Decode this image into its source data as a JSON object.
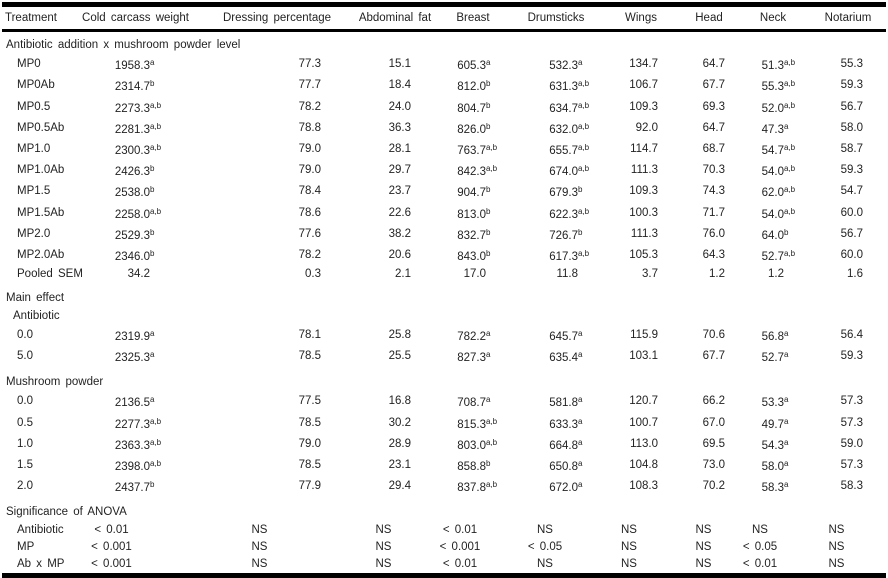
{
  "colors": {
    "text": "#232323",
    "rule": "#000000",
    "background": "#ffffff"
  },
  "table": {
    "columns": [
      "Treatment",
      "Cold carcass weight",
      "Dressing percentage",
      "Abdominal fat",
      "Breast",
      "Drumsticks",
      "Wings",
      "Head",
      "Neck",
      "Notarium"
    ],
    "rows": [
      {
        "type": "section",
        "label": "Antibiotic addition x mushroom powder level"
      },
      {
        "type": "data",
        "label": "MP0",
        "values": [
          {
            "v": "1958.3",
            "s": "a"
          },
          {
            "v": "77.3",
            "s": ""
          },
          {
            "v": "15.1",
            "s": ""
          },
          {
            "v": "605.3",
            "s": "a"
          },
          {
            "v": "532.3",
            "s": "a"
          },
          {
            "v": "134.7",
            "s": ""
          },
          {
            "v": "64.7",
            "s": ""
          },
          {
            "v": "51.3",
            "s": "a,b"
          },
          {
            "v": "55.3",
            "s": ""
          }
        ]
      },
      {
        "type": "data",
        "label": "MP0Ab",
        "values": [
          {
            "v": "2314.7",
            "s": "b"
          },
          {
            "v": "77.7",
            "s": ""
          },
          {
            "v": "18.4",
            "s": ""
          },
          {
            "v": "812.0",
            "s": "b"
          },
          {
            "v": "631.3",
            "s": "a,b"
          },
          {
            "v": "106.7",
            "s": ""
          },
          {
            "v": "67.7",
            "s": ""
          },
          {
            "v": "55.3",
            "s": "a,b"
          },
          {
            "v": "59.3",
            "s": ""
          }
        ]
      },
      {
        "type": "data",
        "label": "MP0.5",
        "values": [
          {
            "v": "2273.3",
            "s": "a,b"
          },
          {
            "v": "78.2",
            "s": ""
          },
          {
            "v": "24.0",
            "s": ""
          },
          {
            "v": "804.7",
            "s": "b"
          },
          {
            "v": "634.7",
            "s": "a,b"
          },
          {
            "v": "109.3",
            "s": ""
          },
          {
            "v": "69.3",
            "s": ""
          },
          {
            "v": "52.0",
            "s": "a,b"
          },
          {
            "v": "56.7",
            "s": ""
          }
        ]
      },
      {
        "type": "data",
        "label": "MP0.5Ab",
        "values": [
          {
            "v": "2281.3",
            "s": "a,b"
          },
          {
            "v": "78.8",
            "s": ""
          },
          {
            "v": "36.3",
            "s": ""
          },
          {
            "v": "826.0",
            "s": "b"
          },
          {
            "v": "632.0",
            "s": "a,b"
          },
          {
            "v": "92.0",
            "s": ""
          },
          {
            "v": "64.7",
            "s": ""
          },
          {
            "v": "47.3",
            "s": "a"
          },
          {
            "v": "58.0",
            "s": ""
          }
        ]
      },
      {
        "type": "data",
        "label": "MP1.0",
        "values": [
          {
            "v": "2300.3",
            "s": "a,b"
          },
          {
            "v": "79.0",
            "s": ""
          },
          {
            "v": "28.1",
            "s": ""
          },
          {
            "v": "763.7",
            "s": "a,b"
          },
          {
            "v": "655.7",
            "s": "a,b"
          },
          {
            "v": "114.7",
            "s": ""
          },
          {
            "v": "68.7",
            "s": ""
          },
          {
            "v": "54.7",
            "s": "a,b"
          },
          {
            "v": "58.7",
            "s": ""
          }
        ]
      },
      {
        "type": "data",
        "label": "MP1.0Ab",
        "values": [
          {
            "v": "2426.3",
            "s": "b"
          },
          {
            "v": "79.0",
            "s": ""
          },
          {
            "v": "29.7",
            "s": ""
          },
          {
            "v": "842.3",
            "s": "a,b"
          },
          {
            "v": "674.0",
            "s": "a,b"
          },
          {
            "v": "111.3",
            "s": ""
          },
          {
            "v": "70.3",
            "s": ""
          },
          {
            "v": "54.0",
            "s": "a,b"
          },
          {
            "v": "59.3",
            "s": ""
          }
        ]
      },
      {
        "type": "data",
        "label": "MP1.5",
        "values": [
          {
            "v": "2538.0",
            "s": "b"
          },
          {
            "v": "78.4",
            "s": ""
          },
          {
            "v": "23.7",
            "s": ""
          },
          {
            "v": "904.7",
            "s": "b"
          },
          {
            "v": "679.3",
            "s": "b"
          },
          {
            "v": "109.3",
            "s": ""
          },
          {
            "v": "74.3",
            "s": ""
          },
          {
            "v": "62.0",
            "s": "a,b"
          },
          {
            "v": "54.7",
            "s": ""
          }
        ]
      },
      {
        "type": "data",
        "label": "MP1.5Ab",
        "values": [
          {
            "v": "2258.0",
            "s": "a,b"
          },
          {
            "v": "78.6",
            "s": ""
          },
          {
            "v": "22.6",
            "s": ""
          },
          {
            "v": "813.0",
            "s": "b"
          },
          {
            "v": "622.3",
            "s": "a,b"
          },
          {
            "v": "100.3",
            "s": ""
          },
          {
            "v": "71.7",
            "s": ""
          },
          {
            "v": "54.0",
            "s": "a,b"
          },
          {
            "v": "60.0",
            "s": ""
          }
        ]
      },
      {
        "type": "data",
        "label": "MP2.0",
        "values": [
          {
            "v": "2529.3",
            "s": "b"
          },
          {
            "v": "77.6",
            "s": ""
          },
          {
            "v": "38.2",
            "s": ""
          },
          {
            "v": "832.7",
            "s": "b"
          },
          {
            "v": "726.7",
            "s": "b"
          },
          {
            "v": "111.3",
            "s": ""
          },
          {
            "v": "76.0",
            "s": ""
          },
          {
            "v": "64.0",
            "s": "b"
          },
          {
            "v": "56.7",
            "s": ""
          }
        ]
      },
      {
        "type": "data",
        "label": "MP2.0Ab",
        "values": [
          {
            "v": "2346.0",
            "s": "b"
          },
          {
            "v": "78.2",
            "s": ""
          },
          {
            "v": "20.6",
            "s": ""
          },
          {
            "v": "843.0",
            "s": "b"
          },
          {
            "v": "617.3",
            "s": "a,b"
          },
          {
            "v": "105.3",
            "s": ""
          },
          {
            "v": "64.3",
            "s": ""
          },
          {
            "v": "52.7",
            "s": "a,b"
          },
          {
            "v": "60.0",
            "s": ""
          }
        ]
      },
      {
        "type": "data",
        "label": "Pooled SEM",
        "values": [
          {
            "v": "34.2",
            "s": ""
          },
          {
            "v": "0.3",
            "s": ""
          },
          {
            "v": "2.1",
            "s": ""
          },
          {
            "v": "17.0",
            "s": ""
          },
          {
            "v": "11.8",
            "s": ""
          },
          {
            "v": "3.7",
            "s": ""
          },
          {
            "v": "1.2",
            "s": ""
          },
          {
            "v": "1.2",
            "s": ""
          },
          {
            "v": "1.6",
            "s": ""
          }
        ]
      },
      {
        "type": "section",
        "label": "Main effect"
      },
      {
        "type": "subsection",
        "label": "Antibiotic"
      },
      {
        "type": "data",
        "label": "0.0",
        "values": [
          {
            "v": "2319.9",
            "s": "a"
          },
          {
            "v": "78.1",
            "s": ""
          },
          {
            "v": "25.8",
            "s": ""
          },
          {
            "v": "782.2",
            "s": "a"
          },
          {
            "v": "645.7",
            "s": "a"
          },
          {
            "v": "115.9",
            "s": ""
          },
          {
            "v": "70.6",
            "s": ""
          },
          {
            "v": "56.8",
            "s": "a"
          },
          {
            "v": "56.4",
            "s": ""
          }
        ]
      },
      {
        "type": "data",
        "label": "5.0",
        "values": [
          {
            "v": "2325.3",
            "s": "a"
          },
          {
            "v": "78.5",
            "s": ""
          },
          {
            "v": "25.5",
            "s": ""
          },
          {
            "v": "827.3",
            "s": "a"
          },
          {
            "v": "635.4",
            "s": "a"
          },
          {
            "v": "103.1",
            "s": ""
          },
          {
            "v": "67.7",
            "s": ""
          },
          {
            "v": "52.7",
            "s": "a"
          },
          {
            "v": "59.3",
            "s": ""
          }
        ]
      },
      {
        "type": "section",
        "label": "Mushroom powder"
      },
      {
        "type": "data",
        "label": "0.0",
        "values": [
          {
            "v": "2136.5",
            "s": "a"
          },
          {
            "v": "77.5",
            "s": ""
          },
          {
            "v": "16.8",
            "s": ""
          },
          {
            "v": "708.7",
            "s": "a"
          },
          {
            "v": "581.8",
            "s": "a"
          },
          {
            "v": "120.7",
            "s": ""
          },
          {
            "v": "66.2",
            "s": ""
          },
          {
            "v": "53.3",
            "s": "a"
          },
          {
            "v": "57.3",
            "s": ""
          }
        ]
      },
      {
        "type": "data",
        "label": "0.5",
        "values": [
          {
            "v": "2277.3",
            "s": "a,b"
          },
          {
            "v": "78.5",
            "s": ""
          },
          {
            "v": "30.2",
            "s": ""
          },
          {
            "v": "815.3",
            "s": "a,b"
          },
          {
            "v": "633.3",
            "s": "a"
          },
          {
            "v": "100.7",
            "s": ""
          },
          {
            "v": "67.0",
            "s": ""
          },
          {
            "v": "49.7",
            "s": "a"
          },
          {
            "v": "57.3",
            "s": ""
          }
        ]
      },
      {
        "type": "data",
        "label": "1.0",
        "values": [
          {
            "v": "2363.3",
            "s": "a,b"
          },
          {
            "v": "79.0",
            "s": ""
          },
          {
            "v": "28.9",
            "s": ""
          },
          {
            "v": "803.0",
            "s": "a,b"
          },
          {
            "v": "664.8",
            "s": "a"
          },
          {
            "v": "113.0",
            "s": ""
          },
          {
            "v": "69.5",
            "s": ""
          },
          {
            "v": "54.3",
            "s": "a"
          },
          {
            "v": "59.0",
            "s": ""
          }
        ]
      },
      {
        "type": "data",
        "label": "1.5",
        "values": [
          {
            "v": "2398.0",
            "s": "a,b"
          },
          {
            "v": "78.5",
            "s": ""
          },
          {
            "v": "23.1",
            "s": ""
          },
          {
            "v": "858.8",
            "s": "b"
          },
          {
            "v": "650.8",
            "s": "a"
          },
          {
            "v": "104.8",
            "s": ""
          },
          {
            "v": "73.0",
            "s": ""
          },
          {
            "v": "58.0",
            "s": "a"
          },
          {
            "v": "57.3",
            "s": ""
          }
        ]
      },
      {
        "type": "data",
        "label": "2.0",
        "values": [
          {
            "v": "2437.7",
            "s": "b"
          },
          {
            "v": "77.9",
            "s": ""
          },
          {
            "v": "29.4",
            "s": ""
          },
          {
            "v": "837.8",
            "s": "a,b"
          },
          {
            "v": "672.0",
            "s": "a"
          },
          {
            "v": "108.3",
            "s": ""
          },
          {
            "v": "70.2",
            "s": ""
          },
          {
            "v": "58.3",
            "s": "a"
          },
          {
            "v": "58.3",
            "s": ""
          }
        ]
      },
      {
        "type": "section",
        "label": "Significance of ANOVA"
      },
      {
        "type": "anova",
        "label": "Antibiotic",
        "values": [
          "< 0.01",
          "NS",
          "NS",
          "< 0.01",
          "NS",
          "NS",
          "NS",
          "NS",
          "NS"
        ]
      },
      {
        "type": "anova",
        "label": "MP",
        "values": [
          "< 0.001",
          "NS",
          "NS",
          "< 0.001",
          "< 0.05",
          "NS",
          "NS",
          "< 0.05",
          "NS"
        ]
      },
      {
        "type": "anova",
        "label": "Ab x MP",
        "values": [
          "< 0.001",
          "NS",
          "NS",
          "< 0.01",
          "NS",
          "NS",
          "NS",
          "< 0.01",
          "NS"
        ]
      }
    ]
  }
}
